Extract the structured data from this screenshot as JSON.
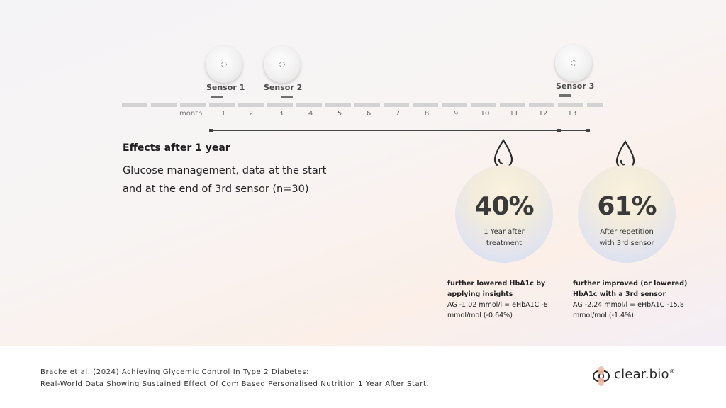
{
  "timeline": {
    "month_word": "month",
    "months": [
      "1",
      "2",
      "3",
      "4",
      "5",
      "6",
      "7",
      "8",
      "9",
      "10",
      "11",
      "12",
      "13"
    ],
    "sensors": [
      {
        "label": "Sensor 1"
      },
      {
        "label": "Sensor 2"
      },
      {
        "label": "Sensor 3"
      }
    ]
  },
  "effects": {
    "heading": "Effects after 1 year",
    "line1": "Glucose management, data at the start",
    "line2": "and at the end of 3rd sensor (n=30)"
  },
  "stats": [
    {
      "percent": "40%",
      "caption1": "1 Year after",
      "caption2": "treatment",
      "note_bold1": "further lowered HbA1c by",
      "note_bold2": "applying insights",
      "note1": "AG -1.02 mmol/l = eHbA1C -8",
      "note2": "mmol/mol (-0.64%)"
    },
    {
      "percent": "61%",
      "caption1": "After repetition",
      "caption2": "with 3rd sensor",
      "note_bold1": "further improved (or lowered)",
      "note_bold2": "HbA1c with a 3rd sensor",
      "note1": "AG -2.24 mmol/l = eHbA1C -15.8",
      "note2": "mmol/mol (-1.4%)"
    }
  ],
  "citation": {
    "line1": "Bracke et al. (2024) Achieving Glycemic Control In Type 2 Diabetes:",
    "line2": "Real-World Data Showing Sustained Effect Of Cgm Based Personalised Nutrition 1 Year After Start."
  },
  "logo": {
    "brand": "clear.bio",
    "mark": "®"
  }
}
